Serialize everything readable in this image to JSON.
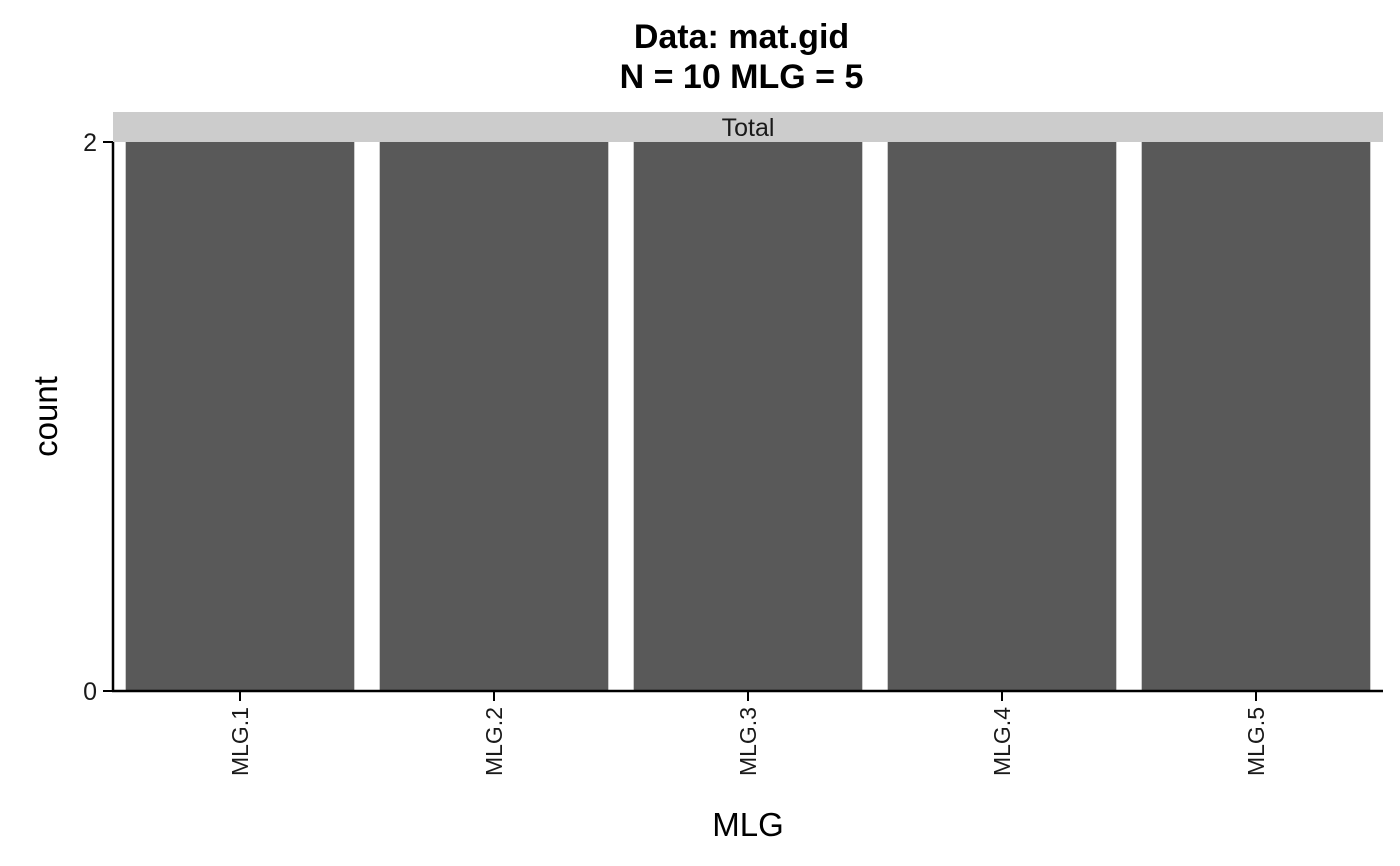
{
  "chart_data": {
    "type": "bar",
    "title": "Data: mat.gid",
    "subtitle": "N = 10 MLG = 5",
    "facet_label": "Total",
    "categories": [
      "MLG.1",
      "MLG.2",
      "MLG.3",
      "MLG.4",
      "MLG.5"
    ],
    "values": [
      2,
      2,
      2,
      2,
      2
    ],
    "xlabel": "MLG",
    "ylabel": "count",
    "ylim": [
      0,
      2
    ],
    "yticks": [
      "0",
      "2"
    ],
    "grid": false,
    "bar_color": "#595959",
    "strip_color": "#cccccc"
  }
}
